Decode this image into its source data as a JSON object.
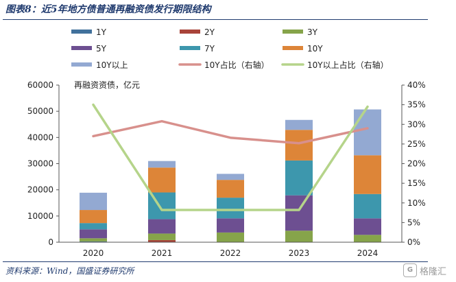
{
  "header": {
    "title": "图表8：近5年地方债普通再融资债发行期限结构"
  },
  "footer": {
    "source": "资料来源：Wind，国盛证券研究所"
  },
  "watermark": {
    "logo_text": "G",
    "text": "格隆汇"
  },
  "colors": {
    "1Y": "#41719c",
    "2Y": "#a9443a",
    "3Y": "#86a44a",
    "5Y": "#6d4f91",
    "7Y": "#3d97ad",
    "10Y": "#dd8538",
    "10Y以上": "#93a9d2",
    "line_10Y": "#d8908c",
    "line_10Y以上": "#b5d48a"
  },
  "chart_data": {
    "type": "bar",
    "stacked": true,
    "categories": [
      "2020",
      "2021",
      "2022",
      "2023",
      "2024"
    ],
    "ylabel": "再融资资债，亿元",
    "ylim": [
      0,
      60000
    ],
    "yticks": [
      "0",
      "10000",
      "20000",
      "30000",
      "40000",
      "50000",
      "60000"
    ],
    "y2lim": [
      0,
      0.4
    ],
    "y2ticks": [
      "0%",
      "5%",
      "10%",
      "15%",
      "20%",
      "25%",
      "30%",
      "35%",
      "40%"
    ],
    "series": [
      {
        "name": "1Y",
        "type": "bar",
        "color_key": "1Y",
        "values": [
          300,
          0,
          0,
          0,
          0
        ]
      },
      {
        "name": "2Y",
        "type": "bar",
        "color_key": "2Y",
        "values": [
          0,
          800,
          0,
          0,
          0
        ]
      },
      {
        "name": "3Y",
        "type": "bar",
        "color_key": "3Y",
        "values": [
          1200,
          2500,
          3700,
          4400,
          2800
        ]
      },
      {
        "name": "5Y",
        "type": "bar",
        "color_key": "5Y",
        "values": [
          3400,
          5500,
          5400,
          13500,
          6300
        ]
      },
      {
        "name": "7Y",
        "type": "bar",
        "color_key": "7Y",
        "values": [
          2400,
          10200,
          7900,
          13300,
          9300
        ]
      },
      {
        "name": "10Y",
        "type": "bar",
        "color_key": "10Y",
        "values": [
          5000,
          9500,
          6800,
          11700,
          14800
        ]
      },
      {
        "name": "10Y以上",
        "type": "bar",
        "color_key": "10Y以上",
        "values": [
          6600,
          2500,
          2300,
          3800,
          17500
        ]
      },
      {
        "name": "10Y占比（右轴）",
        "type": "line",
        "axis": "right",
        "color_key": "line_10Y",
        "values": [
          0.27,
          0.308,
          0.266,
          0.252,
          0.29
        ]
      },
      {
        "name": "10Y以上占比（右轴）",
        "type": "line",
        "axis": "right",
        "color_key": "line_10Y以上",
        "values": [
          0.35,
          0.082,
          0.082,
          0.082,
          0.345
        ]
      }
    ],
    "legend": [
      "1Y",
      "2Y",
      "3Y",
      "5Y",
      "7Y",
      "10Y",
      "10Y以上",
      "10Y占比（右轴）",
      "10Y以上占比（右轴）"
    ],
    "legend_position": "top"
  }
}
